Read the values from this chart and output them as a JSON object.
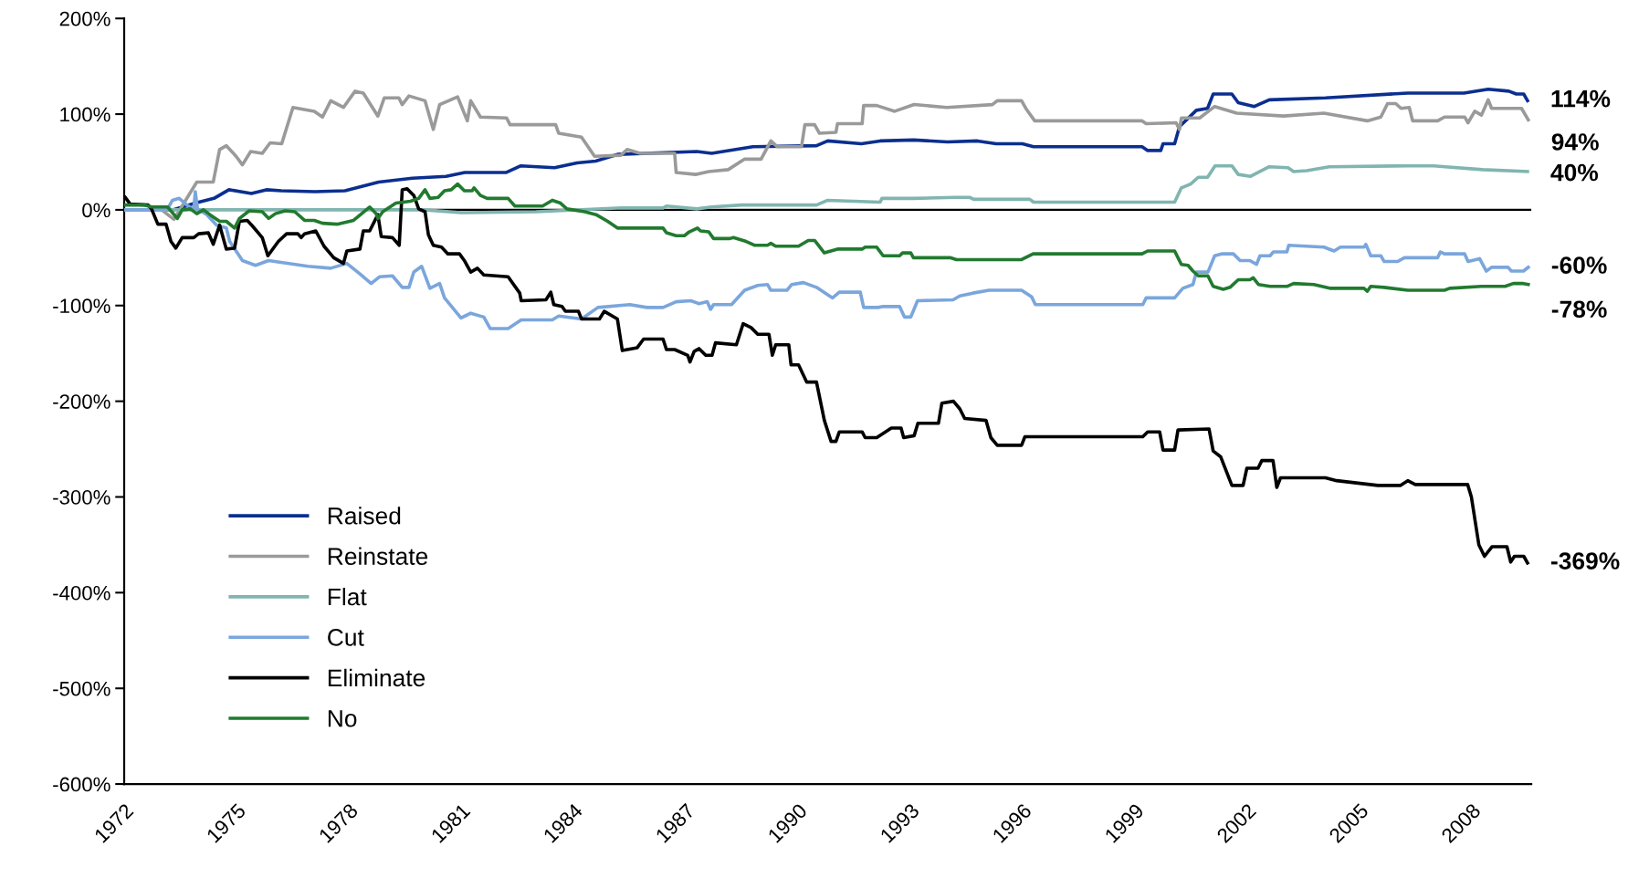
{
  "chart_data": {
    "type": "line",
    "xlim": [
      1972,
      2009.6
    ],
    "xticks": [
      1972,
      1975,
      1978,
      1981,
      1984,
      1987,
      1990,
      1993,
      1996,
      1999,
      2002,
      2005,
      2008
    ],
    "ylim": [
      -600,
      200
    ],
    "yticks": [
      {
        "value": -600,
        "label": "-600%"
      },
      {
        "value": -500,
        "label": "-500%"
      },
      {
        "value": -400,
        "label": "-400%"
      },
      {
        "value": -300,
        "label": "-300%"
      },
      {
        "value": -200,
        "label": "-200%"
      },
      {
        "value": -100,
        "label": "-100%"
      },
      {
        "value": 0,
        "label": "0%"
      },
      {
        "value": 100,
        "label": "100%"
      },
      {
        "value": 200,
        "label": "200%"
      }
    ],
    "grid": false,
    "legend": "bottom left",
    "marker": "none",
    "line_style": "solid",
    "ref_lines": [
      {
        "axis": "y",
        "value": 0,
        "label": null,
        "color": "#000000"
      }
    ],
    "annotations": [
      "114%",
      "94%",
      "40%",
      "-60%",
      "-369%",
      "-78%"
    ],
    "series": [
      {
        "name": "Raised",
        "color": "#0b2f8f",
        "x": [
          1972.0,
          1973.3,
          1973.9,
          1974.4,
          1974.8,
          1975.4,
          1975.8,
          1976.2,
          1977.1,
          1977.9,
          1978.8,
          1979.7,
          1980.6,
          1981.1,
          1982.2,
          1982.6,
          1983.5,
          1984.1,
          1984.6,
          1985.2,
          1987.3,
          1987.7,
          1988.8,
          1990.5,
          1990.8,
          1991.7,
          1992.2,
          1993.1,
          1994.0,
          1994.8,
          1995.3,
          1996.0,
          1996.3,
          1999.2,
          1999.35,
          1999.7,
          1999.76,
          2000.07,
          2000.2,
          2000.65,
          2000.95,
          2001.1,
          2001.6,
          2001.77,
          2002.2,
          2002.6,
          2004.1,
          2006.3,
          2007.8,
          2008.45,
          2009.0,
          2009.2,
          2009.4,
          2009.5
        ],
        "values": [
          0,
          0,
          7,
          12,
          21,
          17,
          21,
          20,
          19,
          20,
          29,
          33,
          35,
          39,
          39,
          46,
          44,
          49,
          51,
          58,
          61,
          59,
          66,
          67,
          72,
          69,
          72,
          73,
          71,
          72,
          69,
          69,
          66,
          66,
          62,
          62,
          69,
          69,
          87,
          104,
          106,
          121,
          121,
          112,
          108,
          115,
          117,
          122,
          122,
          126,
          124,
          121,
          121,
          114
        ]
      },
      {
        "name": "Reinstate",
        "color": "#9a9a9a",
        "x": [
          1972.0,
          1973.0,
          1973.33,
          1973.94,
          1974.38,
          1974.55,
          1974.73,
          1974.99,
          1975.16,
          1975.38,
          1975.69,
          1975.9,
          1976.21,
          1976.51,
          1977.08,
          1977.3,
          1977.52,
          1977.86,
          1978.17,
          1978.39,
          1978.78,
          1978.95,
          1979.34,
          1979.43,
          1979.61,
          1980.04,
          1980.26,
          1980.43,
          1980.91,
          1981.17,
          1981.26,
          1981.52,
          1982.22,
          1982.31,
          1983.53,
          1983.61,
          1984.22,
          1984.57,
          1985.27,
          1985.44,
          1985.79,
          1986.71,
          1986.75,
          1987.27,
          1987.62,
          1988.14,
          1988.58,
          1989.02,
          1989.28,
          1989.45,
          1990.1,
          1990.19,
          1990.45,
          1990.58,
          1991.02,
          1991.06,
          1991.72,
          1991.76,
          1992.11,
          1992.59,
          1993.11,
          1993.98,
          1995.2,
          1995.33,
          1995.98,
          1996.11,
          1996.33,
          1999.2,
          1999.31,
          2000.11,
          2000.2,
          2000.25,
          2000.74,
          2001.14,
          2001.73,
          2002.98,
          2004.06,
          2005.22,
          2005.58,
          2005.76,
          2005.98,
          2006.12,
          2006.34,
          2006.43,
          2007.1,
          2007.28,
          2007.82,
          2007.91,
          2008.09,
          2008.27,
          2008.45,
          2008.54,
          2009.34,
          2009.52
        ],
        "values": [
          0,
          0,
          -10,
          29,
          29,
          63,
          67,
          56,
          47,
          61,
          59,
          70,
          69,
          107,
          103,
          97,
          114,
          107,
          124,
          122,
          98,
          117,
          117,
          110,
          119,
          114,
          84,
          110,
          118,
          93,
          114,
          97,
          96,
          89,
          89,
          80,
          76,
          56,
          57,
          63,
          59,
          59,
          39,
          37,
          40,
          42,
          53,
          53,
          72,
          66,
          66,
          89,
          89,
          80,
          81,
          90,
          90,
          109,
          109,
          103,
          110,
          107,
          110,
          114,
          114,
          105,
          93,
          93,
          90,
          91,
          84,
          96,
          96,
          108,
          101,
          98,
          101,
          93,
          97,
          111,
          111,
          106,
          107,
          93,
          93,
          97,
          97,
          91,
          103,
          99,
          115,
          106,
          106,
          94
        ]
      },
      {
        "name": "Flat",
        "color": "#80b5b0",
        "x": [
          1972.0,
          1980.0,
          1981.0,
          1983.0,
          1985.3,
          1986.4,
          1986.5,
          1987.3,
          1987.7,
          1988.5,
          1990.5,
          1990.8,
          1992.2,
          1992.25,
          1993.1,
          1994.2,
          1994.6,
          1994.7,
          1996.2,
          1996.3,
          2000.07,
          2000.25,
          2000.5,
          2000.7,
          2000.95,
          2001.15,
          2001.6,
          2001.77,
          2002.1,
          2002.35,
          2002.6,
          2003.1,
          2003.25,
          2003.6,
          2004.2,
          2006.3,
          2007.0,
          2007.3,
          2008.3,
          2009.5
        ],
        "values": [
          0,
          0,
          -3,
          -2,
          2,
          2,
          4,
          1,
          3,
          5,
          5,
          10,
          8,
          12,
          12,
          13,
          13,
          11,
          11,
          8,
          8,
          23,
          27,
          34,
          34,
          46,
          46,
          37,
          35,
          40,
          45,
          44,
          40,
          41,
          45,
          46,
          46,
          45,
          42,
          40
        ]
      },
      {
        "name": "Cut",
        "color": "#7aa6dc",
        "x": [
          1972.0,
          1973.0,
          1973.16,
          1973.29,
          1973.47,
          1973.68,
          1973.86,
          1973.9,
          1973.96,
          1974.21,
          1974.47,
          1974.73,
          1974.82,
          1974.99,
          1975.16,
          1975.51,
          1975.86,
          1976.91,
          1977.52,
          1977.95,
          1978.3,
          1978.6,
          1978.82,
          1979.17,
          1979.43,
          1979.61,
          1979.74,
          1979.95,
          1980.17,
          1980.43,
          1980.56,
          1981.0,
          1981.26,
          1981.61,
          1981.78,
          1982.26,
          1982.61,
          1983.44,
          1983.61,
          1984.22,
          1984.66,
          1985.51,
          1985.97,
          1986.4,
          1986.75,
          1987.14,
          1987.36,
          1987.58,
          1987.67,
          1987.75,
          1988.23,
          1988.58,
          1988.93,
          1989.19,
          1989.28,
          1989.71,
          1989.84,
          1990.15,
          1990.5,
          1990.93,
          1991.11,
          1991.67,
          1991.76,
          1992.15,
          1992.28,
          1992.72,
          1992.85,
          1993.02,
          1993.2,
          1994.15,
          1994.33,
          1994.68,
          1995.11,
          1995.98,
          1996.25,
          1996.35,
          1999.22,
          1999.31,
          2000.07,
          2000.29,
          2000.56,
          2000.65,
          2000.96,
          2001.14,
          2001.32,
          2001.64,
          2001.82,
          2002.08,
          2002.26,
          2002.35,
          2002.62,
          2002.71,
          2003.07,
          2003.12,
          2004.06,
          2004.33,
          2004.5,
          2005.13,
          2005.18,
          2005.31,
          2005.58,
          2005.67,
          2006.03,
          2006.21,
          2007.1,
          2007.17,
          2007.28,
          2007.82,
          2007.91,
          2008.22,
          2008.4,
          2008.54,
          2008.98,
          2009.07,
          2009.39,
          2009.52
        ],
        "values": [
          0,
          0,
          1,
          10,
          12,
          5,
          0,
          19,
          1,
          -5,
          -16,
          -19,
          -33,
          -43,
          -53,
          -58,
          -53,
          -59,
          -61,
          -56,
          -67,
          -77,
          -70,
          -69,
          -81,
          -81,
          -65,
          -59,
          -82,
          -77,
          -92,
          -113,
          -108,
          -112,
          -124,
          -124,
          -115,
          -115,
          -111,
          -114,
          -102,
          -99,
          -102,
          -102,
          -96,
          -95,
          -98,
          -96,
          -104,
          -99,
          -99,
          -84,
          -79,
          -78,
          -84,
          -84,
          -78,
          -76,
          -81,
          -92,
          -86,
          -86,
          -102,
          -102,
          -101,
          -101,
          -112,
          -112,
          -95,
          -94,
          -90,
          -87,
          -84,
          -84,
          -91,
          -99,
          -99,
          -92,
          -92,
          -82,
          -78,
          -65,
          -65,
          -48,
          -46,
          -46,
          -53,
          -53,
          -57,
          -48,
          -48,
          -44,
          -44,
          -37,
          -39,
          -43,
          -39,
          -39,
          -36,
          -48,
          -48,
          -54,
          -54,
          -50,
          -50,
          -44,
          -46,
          -46,
          -54,
          -51,
          -64,
          -60,
          -60,
          -64,
          -64,
          -60
        ]
      },
      {
        "name": "Eliminate",
        "color": "#000000",
        "x": [
          1972.03,
          1972.16,
          1972.64,
          1972.73,
          1972.9,
          1973.12,
          1973.25,
          1973.38,
          1973.55,
          1973.86,
          1973.99,
          1974.25,
          1974.38,
          1974.55,
          1974.73,
          1974.95,
          1975.08,
          1975.29,
          1975.43,
          1975.69,
          1975.84,
          1976.12,
          1976.34,
          1976.64,
          1976.73,
          1976.82,
          1977.12,
          1977.34,
          1977.6,
          1977.86,
          1977.95,
          1978.3,
          1978.39,
          1978.56,
          1978.78,
          1978.87,
          1979.17,
          1979.35,
          1979.43,
          1979.56,
          1979.74,
          1979.87,
          1980.04,
          1980.13,
          1980.26,
          1980.48,
          1980.65,
          1980.96,
          1981.09,
          1981.26,
          1981.44,
          1981.61,
          1982.26,
          1982.57,
          1982.61,
          1983.27,
          1983.4,
          1983.48,
          1983.7,
          1983.79,
          1984.14,
          1984.22,
          1984.7,
          1984.83,
          1985.18,
          1985.31,
          1985.71,
          1985.88,
          1986.4,
          1986.49,
          1986.71,
          1987.06,
          1987.12,
          1987.23,
          1987.36,
          1987.54,
          1987.71,
          1987.8,
          1988.36,
          1988.54,
          1988.75,
          1988.93,
          1989.23,
          1989.32,
          1989.41,
          1989.76,
          1989.82,
          1990.02,
          1990.24,
          1990.5,
          1990.71,
          1990.89,
          1991.02,
          1991.11,
          1991.72,
          1991.8,
          1992.11,
          1992.5,
          1992.76,
          1992.83,
          1993.11,
          1993.21,
          1993.76,
          1993.85,
          1994.16,
          1994.33,
          1994.46,
          1995.03,
          1995.16,
          1995.33,
          1995.98,
          1996.07,
          1999.22,
          1999.35,
          1999.67,
          1999.76,
          2000.07,
          2000.16,
          2000.99,
          2001.1,
          2001.3,
          2001.6,
          2001.9,
          2002.0,
          2002.3,
          2002.4,
          2002.7,
          2002.8,
          2002.9,
          2004.1,
          2004.4,
          2005.5,
          2006.1,
          2006.3,
          2006.5,
          2007.9,
          2008.0,
          2008.2,
          2008.35,
          2008.55,
          2008.95,
          2009.05,
          2009.15,
          2009.4,
          2009.5
        ],
        "values": [
          13,
          6,
          5,
          1,
          -15,
          -15,
          -33,
          -40,
          -29,
          -29,
          -25,
          -24,
          -36,
          -16,
          -41,
          -40,
          -12,
          -11,
          -17,
          -29,
          -48,
          -33,
          -25,
          -25,
          -29,
          -25,
          -22,
          -38,
          -50,
          -56,
          -43,
          -41,
          -22,
          -22,
          -5,
          -28,
          -29,
          -37,
          21,
          22,
          15,
          1,
          -2,
          -26,
          -37,
          -39,
          -46,
          -46,
          -53,
          -65,
          -61,
          -68,
          -70,
          -87,
          -95,
          -94,
          -86,
          -99,
          -101,
          -106,
          -106,
          -114,
          -114,
          -106,
          -114,
          -147,
          -144,
          -135,
          -135,
          -146,
          -146,
          -152,
          -159,
          -148,
          -145,
          -152,
          -152,
          -139,
          -141,
          -119,
          -123,
          -130,
          -130,
          -152,
          -141,
          -141,
          -162,
          -162,
          -180,
          -180,
          -220,
          -242,
          -242,
          -232,
          -232,
          -238,
          -238,
          -228,
          -228,
          -238,
          -236,
          -223,
          -223,
          -202,
          -200,
          -208,
          -218,
          -220,
          -238,
          -246,
          -246,
          -237,
          -237,
          -232,
          -232,
          -251,
          -251,
          -230,
          -229,
          -252,
          -258,
          -288,
          -288,
          -270,
          -270,
          -262,
          -262,
          -290,
          -280,
          -280,
          -283,
          -288,
          -288,
          -283,
          -287,
          -287,
          -300,
          -350,
          -362,
          -352,
          -352,
          -368,
          -362,
          -362,
          -369
        ]
      },
      {
        "name": "No",
        "color": "#217a2f",
        "x": [
          1972.03,
          1972.55,
          1972.73,
          1973.16,
          1973.42,
          1973.55,
          1973.77,
          1973.94,
          1974.12,
          1974.29,
          1974.55,
          1974.73,
          1974.95,
          1975.08,
          1975.34,
          1975.69,
          1975.86,
          1976.04,
          1976.3,
          1976.56,
          1976.82,
          1977.08,
          1977.3,
          1977.69,
          1978.13,
          1978.56,
          1978.73,
          1978.78,
          1978.91,
          1979.26,
          1979.65,
          1979.87,
          1980.04,
          1980.17,
          1980.39,
          1980.56,
          1980.74,
          1980.91,
          1981.09,
          1981.3,
          1981.35,
          1981.52,
          1981.7,
          1982.26,
          1982.44,
          1983.18,
          1983.44,
          1983.66,
          1983.83,
          1984.31,
          1984.61,
          1984.92,
          1985.18,
          1985.79,
          1986.4,
          1986.49,
          1986.75,
          1986.97,
          1987.1,
          1987.32,
          1987.4,
          1987.62,
          1987.75,
          1988.19,
          1988.28,
          1988.62,
          1988.84,
          1989.19,
          1989.28,
          1989.41,
          1990.02,
          1990.28,
          1990.45,
          1990.71,
          1991.06,
          1991.72,
          1991.8,
          1992.11,
          1992.28,
          1992.72,
          1992.8,
          1993.02,
          1993.09,
          1994.07,
          1994.24,
          1995.98,
          1996.29,
          1999.2,
          1999.35,
          2000.07,
          2000.25,
          2000.43,
          2000.56,
          2000.7,
          2000.96,
          2001.1,
          2001.37,
          2001.55,
          2001.77,
          2002.08,
          2002.17,
          2002.31,
          2002.62,
          2003.07,
          2003.25,
          2003.79,
          2004.24,
          2005.13,
          2005.22,
          2005.31,
          2005.67,
          2006.3,
          2007.28,
          2007.42,
          2008.27,
          2008.9,
          2009.12,
          2009.39,
          2009.52
        ],
        "values": [
          5,
          5,
          3,
          3,
          -9,
          0,
          1,
          -4,
          0,
          -5,
          -12,
          -12,
          -19,
          -9,
          -1,
          -2,
          -9,
          -4,
          -1,
          -2,
          -11,
          -11,
          -14,
          -15,
          -11,
          3,
          -4,
          -9,
          -2,
          7,
          9,
          12,
          21,
          12,
          13,
          20,
          21,
          27,
          20,
          20,
          23,
          15,
          12,
          12,
          4,
          4,
          10,
          7,
          1,
          -2,
          -5,
          -12,
          -19,
          -19,
          -19,
          -24,
          -27,
          -27,
          -23,
          -19,
          -22,
          -23,
          -30,
          -30,
          -29,
          -33,
          -37,
          -37,
          -35,
          -38,
          -38,
          -32,
          -32,
          -45,
          -41,
          -41,
          -39,
          -39,
          -48,
          -48,
          -45,
          -45,
          -50,
          -50,
          -52,
          -52,
          -46,
          -46,
          -43,
          -43,
          -57,
          -58,
          -64,
          -69,
          -69,
          -80,
          -83,
          -81,
          -73,
          -73,
          -71,
          -78,
          -80,
          -80,
          -77,
          -78,
          -82,
          -82,
          -85,
          -80,
          -81,
          -84,
          -84,
          -82,
          -80,
          -80,
          -77,
          -77,
          -78
        ]
      }
    ]
  }
}
